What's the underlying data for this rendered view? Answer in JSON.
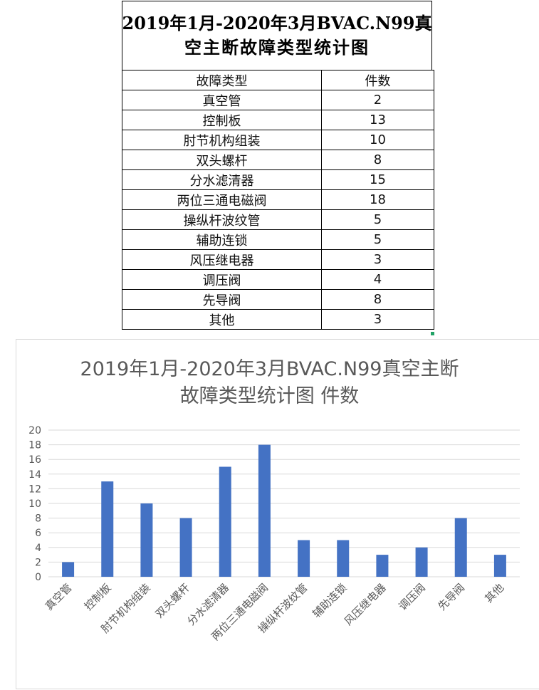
{
  "table": {
    "title_line1": "2019年1月-2020年3月BVAC.N99真",
    "title_line2": "空主断故障类型统计图",
    "header": [
      "故障类型",
      "件数"
    ],
    "rows": [
      [
        "真空管",
        "2"
      ],
      [
        "控制板",
        "13"
      ],
      [
        "肘节机构组装",
        "10"
      ],
      [
        "双头螺杆",
        "8"
      ],
      [
        "分水滤清器",
        "15"
      ],
      [
        "两位三通电磁阀",
        "18"
      ],
      [
        "操纵杆波纹管",
        "5"
      ],
      [
        "辅助连锁",
        "5"
      ],
      [
        "风压继电器",
        "3"
      ],
      [
        "调压阀",
        "4"
      ],
      [
        "先导阀",
        "8"
      ],
      [
        "其他",
        "3"
      ]
    ]
  },
  "chart_data": {
    "type": "bar",
    "title_line1": "2019年1月-2020年3月BVAC.N99真空主断",
    "title_line2": "故障类型统计图 件数",
    "categories": [
      "真空管",
      "控制板",
      "肘节机构组装",
      "双头螺杆",
      "分水滤清器",
      "两位三通电磁阀",
      "操纵杆波纹管",
      "辅助连锁",
      "风压继电器",
      "调压阀",
      "先导阀",
      "其他"
    ],
    "values": [
      2,
      13,
      10,
      8,
      15,
      18,
      5,
      5,
      3,
      4,
      8,
      3
    ],
    "yticks": [
      "0",
      "2",
      "4",
      "6",
      "8",
      "10",
      "12",
      "14",
      "16",
      "18",
      "20"
    ],
    "ylim": [
      0,
      20
    ],
    "xlabel": "",
    "ylabel": "",
    "grid": true,
    "bar_color": "#4472c4",
    "grid_color": "#d9d9d9"
  }
}
